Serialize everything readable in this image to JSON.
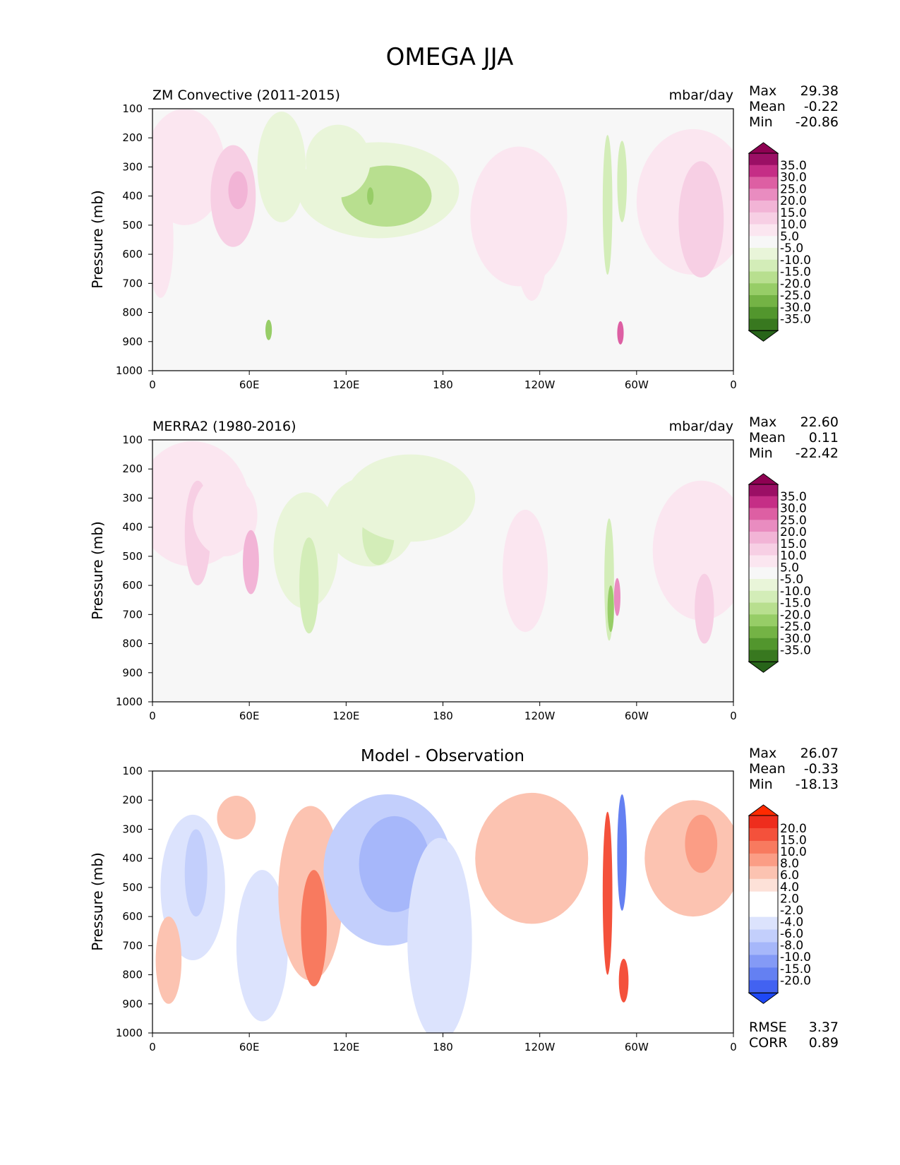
{
  "figure": {
    "title": "OMEGA JJA"
  },
  "axes": {
    "ylabel": "Pressure (mb)",
    "yticks": [
      "100",
      "200",
      "300",
      "400",
      "500",
      "600",
      "700",
      "800",
      "900",
      "1000"
    ],
    "xticks": [
      "0",
      "60E",
      "120E",
      "180",
      "120W",
      "60W",
      "0"
    ]
  },
  "colors": {
    "pos": [
      "#fbe6f0",
      "#f7cfe4",
      "#f2b4d6",
      "#e98cc0",
      "#dd5fa3",
      "#c52e86",
      "#9b0f65",
      "#8e0152"
    ],
    "neg": [
      "#e9f5d9",
      "#d3edb8",
      "#b8df8f",
      "#97cd67",
      "#74b345",
      "#52962d",
      "#38781f",
      "#276419"
    ],
    "diffpos": [
      "#fde1d8",
      "#fcc3b1",
      "#fb9d85",
      "#f87a5f",
      "#f4513b",
      "#ee2d1d",
      "#ff2a00"
    ],
    "diffneg": [
      "#dce3fd",
      "#c3cffc",
      "#a6b7fa",
      "#849af6",
      "#6480f2",
      "#4262f1",
      "#1e48f7"
    ]
  },
  "panels": [
    {
      "id": "test",
      "label": "ZM Convective (2011-2015)",
      "units": "mbar/day",
      "stats": {
        "max_label": "Max",
        "max": "29.38",
        "mean_label": "Mean",
        "mean": "-0.22",
        "min_label": "Min",
        "min": "-20.86"
      },
      "colorbar": [
        "35.0",
        "30.0",
        "25.0",
        "20.0",
        "15.0",
        "10.0",
        "5.0",
        "-5.0",
        "-10.0",
        "-15.0",
        "-20.0",
        "-25.0",
        "-30.0",
        "-35.0"
      ]
    },
    {
      "id": "ref",
      "label": "MERRA2 (1980-2016)",
      "units": "mbar/day",
      "stats": {
        "max_label": "Max",
        "max": "22.60",
        "mean_label": "Mean",
        "mean": "0.11",
        "min_label": "Min",
        "min": "-22.42"
      },
      "colorbar": [
        "35.0",
        "30.0",
        "25.0",
        "20.0",
        "15.0",
        "10.0",
        "5.0",
        "-5.0",
        "-10.0",
        "-15.0",
        "-20.0",
        "-25.0",
        "-30.0",
        "-35.0"
      ]
    },
    {
      "id": "diff",
      "label": "Model - Observation",
      "stats": {
        "max_label": "Max",
        "max": "26.07",
        "mean_label": "Mean",
        "mean": "-0.33",
        "min_label": "Min",
        "min": "-18.13"
      },
      "colorbar": [
        "20.0",
        "15.0",
        "10.0",
        "8.0",
        "6.0",
        "4.0",
        "2.0",
        "-2.0",
        "-4.0",
        "-6.0",
        "-8.0",
        "-10.0",
        "-15.0",
        "-20.0"
      ],
      "rmse_label": "RMSE",
      "rmse": "3.37",
      "corr_label": "CORR",
      "corr": "0.89"
    }
  ],
  "chart_data": [
    {
      "type": "heatmap",
      "title": "ZM Convective (2011-2015)",
      "xlabel": "",
      "ylabel": "Pressure (mb)",
      "xlim": [
        0,
        360
      ],
      "ylim": [
        1000,
        100
      ],
      "fields": [
        {
          "lon": 20,
          "p": 300,
          "wlon": 25,
          "hp": 400,
          "v": 8
        },
        {
          "lon": 50,
          "p": 400,
          "wlon": 14,
          "hp": 350,
          "v": 14
        },
        {
          "lon": 53,
          "p": 380,
          "wlon": 6,
          "hp": 130,
          "v": 18
        },
        {
          "lon": 5,
          "p": 550,
          "wlon": 8,
          "hp": 400,
          "v": 6
        },
        {
          "lon": 80,
          "p": 300,
          "wlon": 15,
          "hp": 380,
          "v": -7
        },
        {
          "lon": 140,
          "p": 380,
          "wlon": 50,
          "hp": 330,
          "v": -9
        },
        {
          "lon": 145,
          "p": 400,
          "wlon": 28,
          "hp": 210,
          "v": -15
        },
        {
          "lon": 135,
          "p": 400,
          "wlon": 2,
          "hp": 60,
          "v": -24
        },
        {
          "lon": 115,
          "p": 280,
          "wlon": 20,
          "hp": 250,
          "v": -6
        },
        {
          "lon": 72,
          "p": 860,
          "wlon": 2,
          "hp": 70,
          "v": -20
        },
        {
          "lon": 227,
          "p": 470,
          "wlon": 30,
          "hp": 480,
          "v": 7
        },
        {
          "lon": 235,
          "p": 550,
          "wlon": 10,
          "hp": 420,
          "v": 9
        },
        {
          "lon": 282,
          "p": 430,
          "wlon": 3,
          "hp": 480,
          "v": -10
        },
        {
          "lon": 291,
          "p": 350,
          "wlon": 3,
          "hp": 280,
          "v": -13
        },
        {
          "lon": 290,
          "p": 870,
          "wlon": 2,
          "hp": 80,
          "v": 28
        },
        {
          "lon": 335,
          "p": 420,
          "wlon": 35,
          "hp": 500,
          "v": 7
        },
        {
          "lon": 340,
          "p": 480,
          "wlon": 14,
          "hp": 400,
          "v": 11
        },
        {
          "lon": 355,
          "p": 300,
          "wlon": 4,
          "hp": 150,
          "v": 9
        }
      ]
    },
    {
      "type": "heatmap",
      "title": "MERRA2 (1980-2016)",
      "xlabel": "",
      "ylabel": "Pressure (mb)",
      "xlim": [
        0,
        360
      ],
      "ylim": [
        1000,
        100
      ],
      "fields": [
        {
          "lon": 25,
          "p": 320,
          "wlon": 35,
          "hp": 430,
          "v": 7
        },
        {
          "lon": 28,
          "p": 420,
          "wlon": 8,
          "hp": 360,
          "v": 11
        },
        {
          "lon": 45,
          "p": 360,
          "wlon": 20,
          "hp": 280,
          "v": 9
        },
        {
          "lon": 61,
          "p": 520,
          "wlon": 5,
          "hp": 220,
          "v": 18
        },
        {
          "lon": 95,
          "p": 480,
          "wlon": 20,
          "hp": 400,
          "v": -8
        },
        {
          "lon": 97,
          "p": 600,
          "wlon": 6,
          "hp": 330,
          "v": -13
        },
        {
          "lon": 135,
          "p": 380,
          "wlon": 28,
          "hp": 310,
          "v": -8
        },
        {
          "lon": 140,
          "p": 420,
          "wlon": 10,
          "hp": 220,
          "v": -11
        },
        {
          "lon": 160,
          "p": 300,
          "wlon": 40,
          "hp": 300,
          "v": -5
        },
        {
          "lon": 231,
          "p": 550,
          "wlon": 14,
          "hp": 420,
          "v": 7
        },
        {
          "lon": 283,
          "p": 580,
          "wlon": 3,
          "hp": 420,
          "v": -11
        },
        {
          "lon": 284,
          "p": 680,
          "wlon": 2,
          "hp": 160,
          "v": -22
        },
        {
          "lon": 288,
          "p": 640,
          "wlon": 2,
          "hp": 130,
          "v": 20
        },
        {
          "lon": 340,
          "p": 480,
          "wlon": 30,
          "hp": 480,
          "v": 6
        },
        {
          "lon": 342,
          "p": 680,
          "wlon": 6,
          "hp": 240,
          "v": 11
        }
      ]
    },
    {
      "type": "heatmap",
      "title": "Model - Observation",
      "xlabel": "",
      "ylabel": "Pressure (mb)",
      "xlim": [
        0,
        360
      ],
      "ylim": [
        1000,
        100
      ],
      "fields": [
        {
          "lon": 25,
          "p": 500,
          "wlon": 20,
          "hp": 500,
          "v": -3
        },
        {
          "lon": 27,
          "p": 450,
          "wlon": 7,
          "hp": 300,
          "v": -5
        },
        {
          "lon": 10,
          "p": 750,
          "wlon": 8,
          "hp": 300,
          "v": 4
        },
        {
          "lon": 52,
          "p": 260,
          "wlon": 12,
          "hp": 150,
          "v": 4
        },
        {
          "lon": 68,
          "p": 700,
          "wlon": 16,
          "hp": 520,
          "v": -3
        },
        {
          "lon": 98,
          "p": 520,
          "wlon": 20,
          "hp": 600,
          "v": 4
        },
        {
          "lon": 100,
          "p": 640,
          "wlon": 8,
          "hp": 400,
          "v": 8
        },
        {
          "lon": 146,
          "p": 440,
          "wlon": 40,
          "hp": 520,
          "v": -4
        },
        {
          "lon": 150,
          "p": 420,
          "wlon": 22,
          "hp": 330,
          "v": -7
        },
        {
          "lon": 178,
          "p": 680,
          "wlon": 20,
          "hp": 700,
          "v": -2
        },
        {
          "lon": 235,
          "p": 400,
          "wlon": 35,
          "hp": 450,
          "v": 4
        },
        {
          "lon": 282,
          "p": 520,
          "wlon": 3,
          "hp": 560,
          "v": 10
        },
        {
          "lon": 291,
          "p": 380,
          "wlon": 3,
          "hp": 400,
          "v": -14
        },
        {
          "lon": 292,
          "p": 820,
          "wlon": 3,
          "hp": 150,
          "v": 13
        },
        {
          "lon": 335,
          "p": 400,
          "wlon": 30,
          "hp": 400,
          "v": 4
        },
        {
          "lon": 340,
          "p": 350,
          "wlon": 10,
          "hp": 200,
          "v": 6
        }
      ]
    }
  ]
}
